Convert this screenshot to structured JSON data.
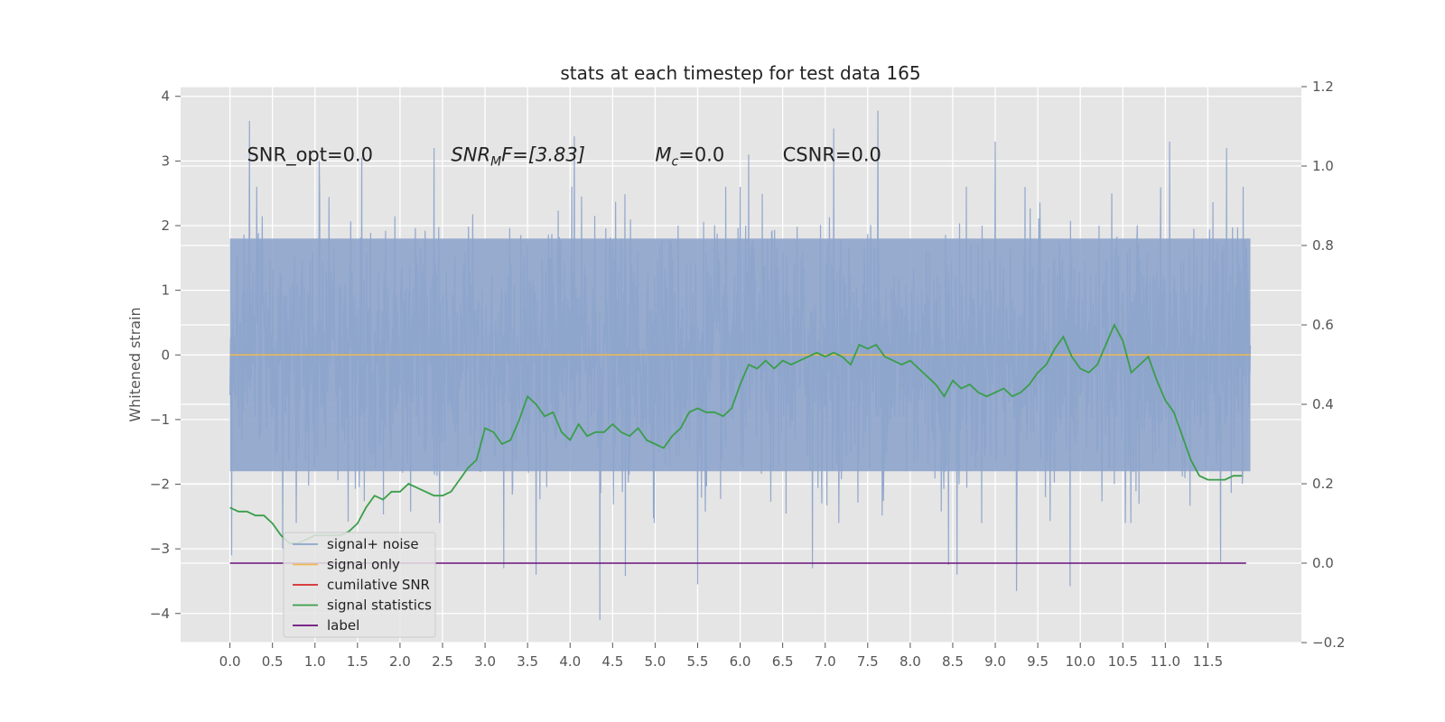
{
  "chart_data": {
    "type": "line",
    "title": "stats at each timestep for test data 165",
    "ylabel": "Whitened strain",
    "xlim": [
      -0.58,
      12.6
    ],
    "ylim": [
      -4.45,
      4.15
    ],
    "y2lim": [
      -0.2,
      1.2
    ],
    "xticks": [
      0.0,
      0.5,
      1.0,
      1.5,
      2.0,
      2.5,
      3.0,
      3.5,
      4.0,
      4.5,
      5.0,
      5.5,
      6.0,
      6.5,
      7.0,
      7.5,
      8.0,
      8.5,
      9.0,
      9.5,
      10.0,
      10.5,
      11.0,
      11.5
    ],
    "xtick_labels": [
      "0.0",
      "0.5",
      "1.0",
      "1.5",
      "2.0",
      "2.5",
      "3.0",
      "3.5",
      "4.0",
      "4.5",
      "5.0",
      "5.5",
      "6.0",
      "6.5",
      "7.0",
      "7.5",
      "8.0",
      "8.5",
      "9.0",
      "9.5",
      "10.0",
      "10.5",
      "11.0",
      "11.5"
    ],
    "yticks": [
      -4,
      -3,
      -2,
      -1,
      0,
      1,
      2,
      3,
      4
    ],
    "ytick_labels": [
      "−4",
      "−3",
      "−2",
      "−1",
      "0",
      "1",
      "2",
      "3",
      "4"
    ],
    "y2ticks": [
      -0.2,
      0.0,
      0.2,
      0.4,
      0.6,
      0.8,
      1.0,
      1.2
    ],
    "y2tick_labels": [
      "−0.2",
      "0.0",
      "0.2",
      "0.4",
      "0.6",
      "0.8",
      "1.0",
      "1.2"
    ],
    "grid": true,
    "legend_position": "lower-left",
    "annotations": [
      {
        "text": "SNR_opt=0.0",
        "x": 0.2,
        "y": 3.0
      },
      {
        "text": "SNR",
        "sub": "M",
        "suffix": "F=[3.83]",
        "italic": true,
        "x": 2.6,
        "y": 3.0
      },
      {
        "text": "M",
        "sub": "c",
        "suffix": "=0.0",
        "italic": true,
        "x": 5.0,
        "y": 3.0
      },
      {
        "text": "CSNR=0.0",
        "x": 6.5,
        "y": 3.0
      }
    ],
    "series": [
      {
        "name": "signal+ noise",
        "axis": "left",
        "color": "#8da4cb",
        "style": "noise",
        "x_start": 0.0,
        "x_end": 12.0,
        "typical_band": [
          -1.8,
          1.8
        ],
        "spikes": [
          {
            "x": 0.02,
            "y": -3.1
          },
          {
            "x": 0.23,
            "y": 3.62
          },
          {
            "x": 0.62,
            "y": -3.0
          },
          {
            "x": 1.05,
            "y": 3.0
          },
          {
            "x": 1.55,
            "y": 3.05
          },
          {
            "x": 2.4,
            "y": 3.2
          },
          {
            "x": 3.22,
            "y": -3.3
          },
          {
            "x": 3.6,
            "y": -3.4
          },
          {
            "x": 4.05,
            "y": 3.38
          },
          {
            "x": 4.35,
            "y": -4.1
          },
          {
            "x": 4.65,
            "y": -3.42
          },
          {
            "x": 5.5,
            "y": -3.55
          },
          {
            "x": 6.1,
            "y": 3.1
          },
          {
            "x": 6.85,
            "y": -3.3
          },
          {
            "x": 7.1,
            "y": 3.5
          },
          {
            "x": 7.62,
            "y": 3.78
          },
          {
            "x": 8.45,
            "y": -3.25
          },
          {
            "x": 8.55,
            "y": -3.4
          },
          {
            "x": 9.0,
            "y": 3.3
          },
          {
            "x": 9.25,
            "y": -3.65
          },
          {
            "x": 9.88,
            "y": -3.58
          },
          {
            "x": 11.05,
            "y": 3.3
          },
          {
            "x": 11.65,
            "y": -3.2
          },
          {
            "x": 11.72,
            "y": 3.2
          }
        ]
      },
      {
        "name": "signal only",
        "axis": "left",
        "color": "#f0b94f",
        "x": [
          0.0,
          12.0
        ],
        "y": [
          0.0,
          0.0
        ]
      },
      {
        "name": "cumilative SNR",
        "axis": "left",
        "color": "#d62728",
        "x": [],
        "y": []
      },
      {
        "name": "signal statistics",
        "axis": "right",
        "color": "#3a9e4a",
        "x": [
          0.0,
          0.1,
          0.2,
          0.3,
          0.4,
          0.5,
          0.6,
          0.7,
          0.8,
          0.9,
          1.0,
          1.1,
          1.2,
          1.3,
          1.4,
          1.5,
          1.6,
          1.7,
          1.8,
          1.9,
          2.0,
          2.1,
          2.2,
          2.3,
          2.4,
          2.5,
          2.6,
          2.7,
          2.8,
          2.9,
          3.0,
          3.1,
          3.2,
          3.3,
          3.4,
          3.5,
          3.6,
          3.7,
          3.8,
          3.9,
          4.0,
          4.1,
          4.2,
          4.3,
          4.4,
          4.5,
          4.6,
          4.7,
          4.8,
          4.9,
          5.0,
          5.1,
          5.2,
          5.3,
          5.4,
          5.5,
          5.6,
          5.7,
          5.8,
          5.9,
          6.0,
          6.1,
          6.2,
          6.3,
          6.4,
          6.5,
          6.6,
          6.7,
          6.8,
          6.9,
          7.0,
          7.1,
          7.2,
          7.3,
          7.4,
          7.5,
          7.6,
          7.7,
          7.8,
          7.9,
          8.0,
          8.1,
          8.2,
          8.3,
          8.4,
          8.5,
          8.6,
          8.7,
          8.8,
          8.9,
          9.0,
          9.1,
          9.2,
          9.3,
          9.4,
          9.5,
          9.6,
          9.7,
          9.8,
          9.9,
          10.0,
          10.1,
          10.2,
          10.3,
          10.4,
          10.5,
          10.6,
          10.7,
          10.8,
          10.9,
          11.0,
          11.1,
          11.2,
          11.3,
          11.4,
          11.5,
          11.6,
          11.7,
          11.8,
          11.9
        ],
        "y": [
          0.14,
          0.13,
          0.13,
          0.12,
          0.12,
          0.1,
          0.07,
          0.05,
          0.05,
          0.06,
          0.07,
          0.07,
          0.07,
          0.07,
          0.08,
          0.1,
          0.14,
          0.17,
          0.16,
          0.18,
          0.18,
          0.2,
          0.19,
          0.18,
          0.17,
          0.17,
          0.18,
          0.21,
          0.24,
          0.26,
          0.34,
          0.33,
          0.3,
          0.31,
          0.36,
          0.42,
          0.4,
          0.37,
          0.38,
          0.33,
          0.31,
          0.35,
          0.32,
          0.33,
          0.33,
          0.35,
          0.33,
          0.32,
          0.34,
          0.31,
          0.3,
          0.29,
          0.32,
          0.34,
          0.38,
          0.39,
          0.38,
          0.38,
          0.37,
          0.39,
          0.45,
          0.5,
          0.49,
          0.51,
          0.49,
          0.51,
          0.5,
          0.51,
          0.52,
          0.53,
          0.52,
          0.53,
          0.52,
          0.5,
          0.55,
          0.54,
          0.55,
          0.52,
          0.51,
          0.5,
          0.51,
          0.49,
          0.47,
          0.45,
          0.42,
          0.46,
          0.44,
          0.45,
          0.43,
          0.42,
          0.43,
          0.44,
          0.42,
          0.43,
          0.45,
          0.48,
          0.5,
          0.54,
          0.57,
          0.52,
          0.49,
          0.48,
          0.5,
          0.55,
          0.6,
          0.56,
          0.48,
          0.5,
          0.52,
          0.46,
          0.41,
          0.38,
          0.32,
          0.26,
          0.22,
          0.21,
          0.21,
          0.21,
          0.22,
          0.22
        ]
      },
      {
        "name": "label",
        "axis": "right",
        "color": "#6a0f7a",
        "x": [
          0.0,
          11.95
        ],
        "y": [
          0.0,
          0.0
        ]
      }
    ]
  }
}
